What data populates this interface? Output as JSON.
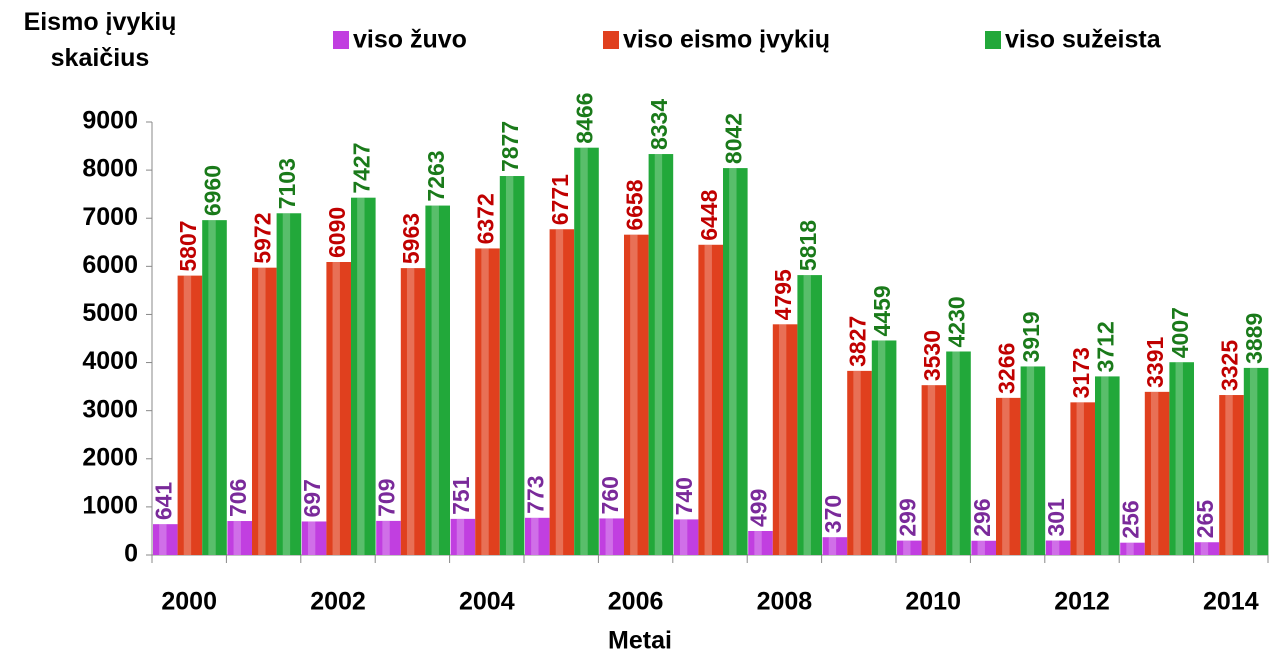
{
  "chart_data": {
    "type": "bar",
    "y_label": "Eismo įvykių skaičius",
    "x_label": "Metai",
    "categories": [
      "2000",
      null,
      "2002",
      null,
      "2004",
      null,
      "2006",
      null,
      "2008",
      null,
      "2010",
      null,
      "2012",
      null,
      "2014"
    ],
    "series": [
      {
        "name": "viso žuvo",
        "color": "#c13fe0",
        "label_color": "#7a2a9a",
        "values": [
          641,
          706,
          697,
          709,
          751,
          773,
          760,
          740,
          499,
          370,
          299,
          296,
          301,
          256,
          265
        ]
      },
      {
        "name": "viso eismo įvykių",
        "color": "#e0401e",
        "label_color": "#c00000",
        "values": [
          5807,
          5972,
          6090,
          5963,
          6372,
          6771,
          6658,
          6448,
          4795,
          3827,
          3530,
          3266,
          3173,
          3391,
          3325
        ]
      },
      {
        "name": "viso sužeista",
        "color": "#22a83a",
        "label_color": "#1a7a1a",
        "values": [
          6960,
          7103,
          7427,
          7263,
          7877,
          8466,
          8334,
          8042,
          5818,
          4459,
          4230,
          3919,
          3712,
          4007,
          3889
        ]
      }
    ],
    "ylim": [
      0,
      9000
    ],
    "yticks": [
      0,
      1000,
      2000,
      3000,
      4000,
      5000,
      6000,
      7000,
      8000,
      9000
    ],
    "legend": "top"
  }
}
